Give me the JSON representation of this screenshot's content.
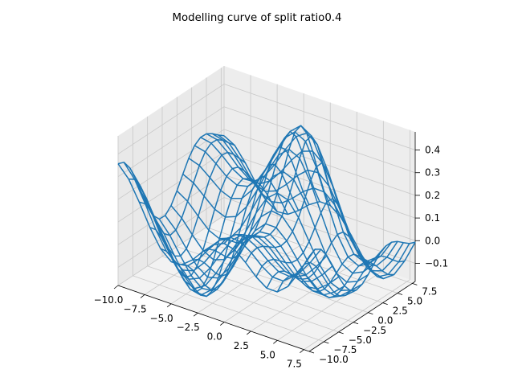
{
  "chart_data": {
    "type": "wireframe3d",
    "title": "Modelling curve of split ratio0.4",
    "xlabel": "",
    "ylabel": "",
    "zlabel": "",
    "grid": true,
    "xlim": [
      -10,
      8
    ],
    "ylim": [
      -10,
      8
    ],
    "zlim": [
      -0.18,
      0.48
    ],
    "x_ticks": [
      -10.0,
      -7.5,
      -5.0,
      -2.5,
      0.0,
      2.5,
      5.0,
      7.5
    ],
    "x_tick_labels": [
      "−10.0",
      "−7.5",
      "−5.0",
      "−2.5",
      "0.0",
      "2.5",
      "5.0",
      "7.5"
    ],
    "y_ticks": [
      -10.0,
      -7.5,
      -5.0,
      -2.5,
      0.0,
      2.5,
      5.0,
      7.5
    ],
    "y_tick_labels": [
      "−10.0",
      "−7.5",
      "−5.0",
      "−2.5",
      "0.0",
      "2.5",
      "5.0",
      "7.5"
    ],
    "z_ticks": [
      -0.1,
      0.0,
      0.1,
      0.2,
      0.3,
      0.4
    ],
    "z_tick_labels": [
      "−0.1",
      "0.0",
      "0.1",
      "0.2",
      "0.3",
      "0.4"
    ],
    "grid_x": [
      -10,
      -9,
      -8,
      -7,
      -6,
      -5,
      -4,
      -3,
      -2,
      -1,
      0,
      1,
      2,
      3,
      4,
      5,
      6,
      7,
      8
    ],
    "grid_y": [
      -10,
      -9,
      -8,
      -7,
      -6,
      -5,
      -4,
      -3,
      -2,
      -1,
      0,
      1,
      2,
      3,
      4,
      5,
      6,
      7,
      8
    ],
    "surface": "z = 0.10*sin(0.5*y) + 0.12*cos(0.6*x) + 0.10*cos(0.3*(x+y)) + 0.15*exp(-((x-1)^2+(y-3)^2)/8) + 0.05",
    "colors": {
      "wire": "#1f77b4",
      "pane": "#f2f2f2",
      "grid": "#c8c8c8",
      "axis": "#000000"
    }
  }
}
